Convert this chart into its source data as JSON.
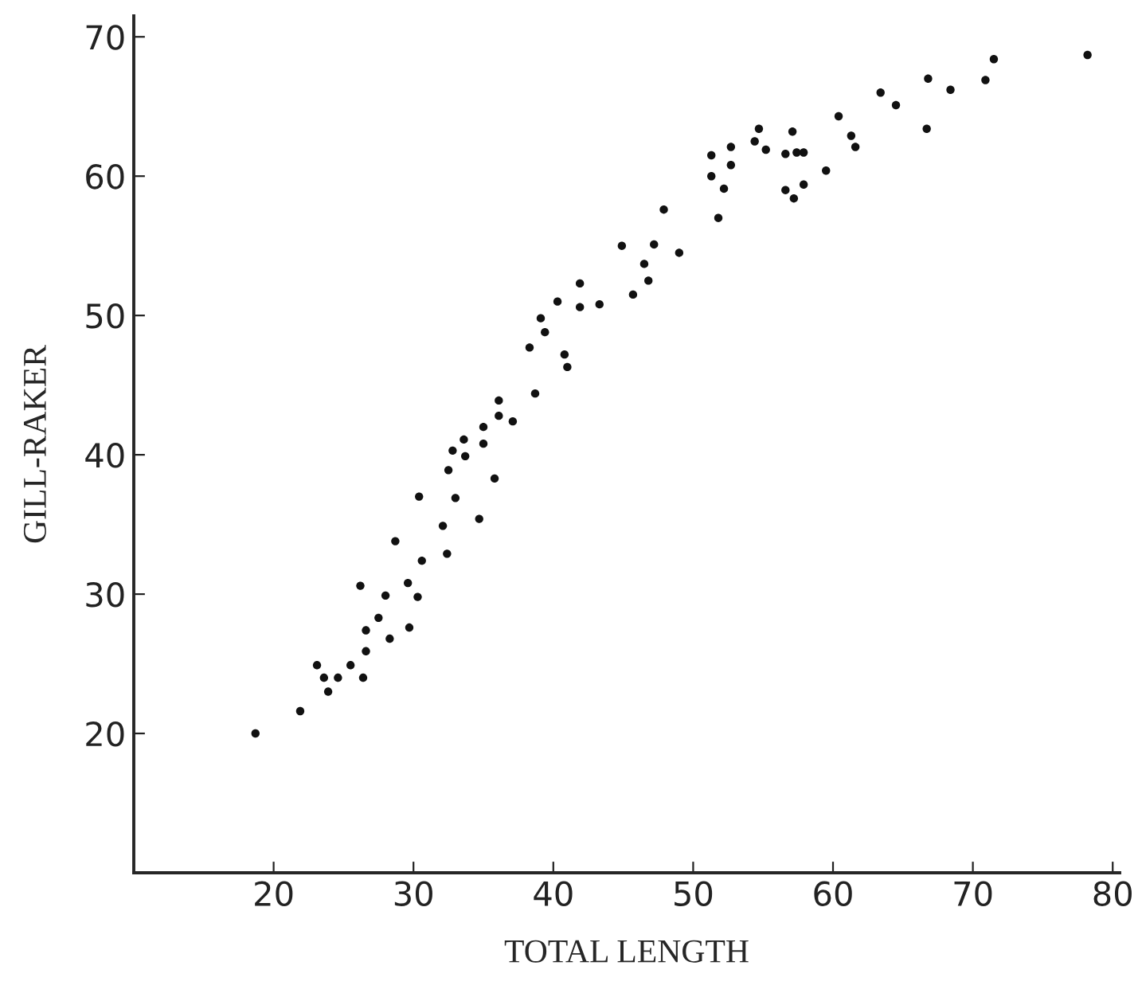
{
  "chart_data": {
    "type": "scatter",
    "xlabel": "TOTAL LENGTH",
    "ylabel": "GILL-RAKER",
    "xlim": [
      10,
      80.5
    ],
    "ylim": [
      10,
      71.5
    ],
    "xticks": [
      20,
      30,
      40,
      50,
      60,
      70,
      80
    ],
    "yticks": [
      20,
      30,
      40,
      50,
      60,
      70
    ],
    "grid": false,
    "marker": "circle",
    "series": [
      {
        "color": "#111111",
        "x": [
          18.7,
          21.9,
          23.1,
          23.6,
          23.9,
          24.6,
          25.5,
          26.4,
          26.2,
          26.6,
          26.6,
          27.5,
          28.0,
          28.3,
          28.7,
          29.6,
          29.7,
          30.3,
          30.6,
          30.4,
          32.1,
          32.4,
          33.0,
          34.7,
          35.8,
          32.5,
          32.8,
          33.6,
          33.7,
          35.0,
          35.0,
          36.1,
          36.1,
          37.1,
          38.7,
          38.3,
          39.4,
          39.1,
          40.3,
          40.8,
          41.0,
          41.9,
          41.9,
          43.3,
          44.9,
          45.7,
          46.5,
          46.8,
          47.2,
          47.9,
          49.0,
          51.3,
          51.3,
          52.2,
          51.8,
          52.7,
          52.7,
          54.7,
          54.4,
          55.2,
          56.6,
          57.4,
          57.9,
          57.1,
          56.6,
          57.2,
          57.9,
          59.5,
          60.4,
          61.3,
          61.6,
          63.4,
          64.5,
          66.8,
          66.7,
          68.4,
          70.9,
          71.5,
          78.2
        ],
        "values": [
          20.0,
          21.6,
          24.9,
          24.0,
          23.0,
          24.0,
          24.9,
          24.0,
          30.6,
          27.4,
          25.9,
          28.3,
          29.9,
          26.8,
          33.8,
          30.8,
          27.6,
          29.8,
          32.4,
          37.0,
          34.9,
          32.9,
          36.9,
          35.4,
          38.3,
          38.9,
          40.3,
          41.1,
          39.9,
          40.8,
          42.0,
          42.8,
          43.9,
          42.4,
          44.4,
          47.7,
          48.8,
          49.8,
          51.0,
          47.2,
          46.3,
          50.6,
          52.3,
          50.8,
          55.0,
          51.5,
          53.7,
          52.5,
          55.1,
          57.6,
          54.5,
          61.5,
          60.0,
          59.1,
          57.0,
          62.1,
          60.8,
          63.4,
          62.5,
          61.9,
          61.6,
          61.7,
          61.7,
          63.2,
          59.0,
          58.4,
          59.4,
          60.4,
          64.3,
          62.9,
          62.1,
          66.0,
          65.1,
          67.0,
          63.4,
          66.2,
          66.9,
          68.4,
          68.7
        ]
      }
    ]
  }
}
